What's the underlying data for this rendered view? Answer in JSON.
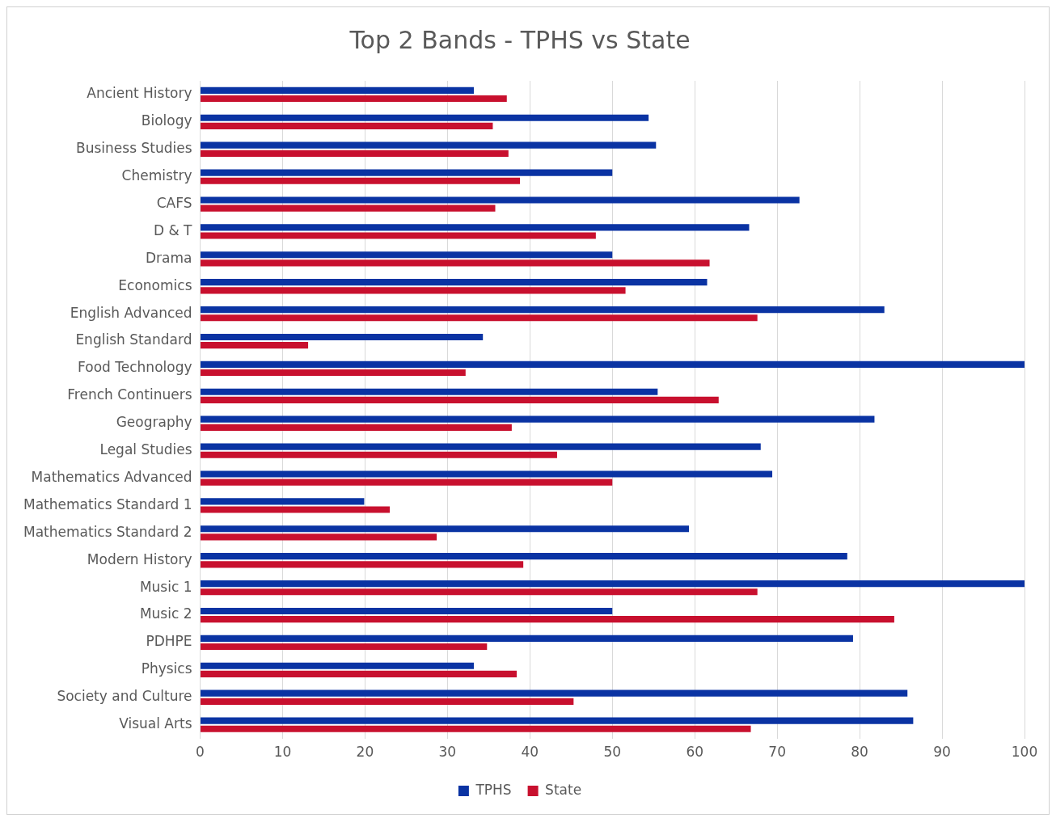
{
  "chart_data": {
    "type": "bar",
    "orientation": "horizontal",
    "title": "Top 2 Bands - TPHS vs State",
    "categories": [
      "Ancient History",
      "Biology",
      "Business Studies",
      "Chemistry",
      "CAFS",
      "D & T",
      "Drama",
      "Economics",
      "English Advanced",
      "English Standard",
      "Food Technology",
      "French Continuers",
      "Geography",
      "Legal Studies",
      "Mathematics Advanced",
      "Mathematics Standard 1",
      "Mathematics Standard 2",
      "Modern History",
      "Music 1",
      "Music 2",
      "PDHPE",
      "Physics",
      "Society and Culture",
      "Visual Arts"
    ],
    "series": [
      {
        "name": "TPHS",
        "color": "#0a33a3",
        "values": [
          33.2,
          54.4,
          55.3,
          50,
          72.7,
          66.6,
          50,
          61.5,
          83,
          34.3,
          100,
          55.5,
          81.8,
          68,
          69.4,
          19.9,
          59.3,
          78.5,
          100,
          50,
          79.2,
          33.2,
          85.8,
          86.5
        ]
      },
      {
        "name": "State",
        "color": "#c8102e",
        "values": [
          37.2,
          35.5,
          37.4,
          38.8,
          35.8,
          48,
          61.8,
          51.6,
          67.6,
          13.1,
          32.2,
          62.9,
          37.8,
          43.3,
          50,
          23,
          28.7,
          39.2,
          67.6,
          84.2,
          34.8,
          38.4,
          45.3,
          66.8
        ]
      }
    ],
    "xlim": [
      0,
      100
    ],
    "xticks": [
      0,
      10,
      20,
      30,
      40,
      50,
      60,
      70,
      80,
      90,
      100
    ],
    "grid": "x",
    "legend": "bottom"
  }
}
